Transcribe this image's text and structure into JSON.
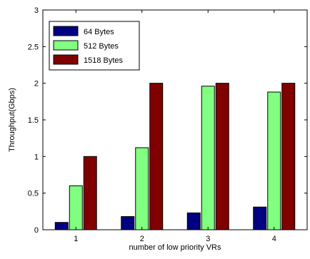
{
  "chart_data": {
    "type": "bar",
    "title": "",
    "xlabel": "number of low priority VRs",
    "ylabel": "Throughput(Gbps)",
    "ylim": [
      0,
      3
    ],
    "yticks": [
      0,
      0.5,
      1,
      1.5,
      2,
      2.5,
      3
    ],
    "ytick_labels": [
      "0",
      "0.5",
      "1",
      "1.5",
      "2",
      "2.5",
      "3"
    ],
    "categories": [
      "1",
      "2",
      "3",
      "4"
    ],
    "series": [
      {
        "name": "64 Bytes",
        "color": "#000080",
        "values": [
          0.1,
          0.18,
          0.23,
          0.31
        ]
      },
      {
        "name": "512 Bytes",
        "color": "#80ff80",
        "values": [
          0.6,
          1.12,
          1.96,
          1.88
        ]
      },
      {
        "name": "1518 Bytes",
        "color": "#800000",
        "values": [
          1.0,
          2.0,
          2.0,
          2.0
        ]
      }
    ],
    "grid": false,
    "legend_position": "top-left"
  }
}
